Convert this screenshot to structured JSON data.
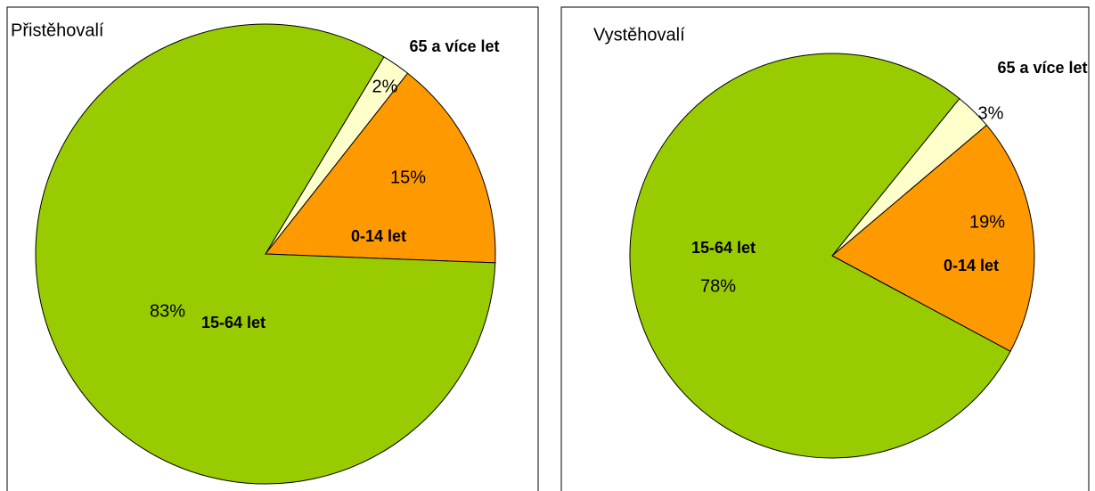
{
  "chart_data": [
    {
      "type": "pie",
      "title": "Přistěhovalí",
      "categories": [
        "0-14 let",
        "15-64 let",
        "65 a více let"
      ],
      "values": [
        15,
        83,
        2
      ],
      "value_labels": [
        "15%",
        "83%",
        "2%"
      ],
      "colors": [
        "#ff9900",
        "#99cc00",
        "#ffffcc"
      ]
    },
    {
      "type": "pie",
      "title": "Vystěhovalí",
      "categories": [
        "0-14 let",
        "15-64 let",
        "65 a více let"
      ],
      "values": [
        19,
        78,
        3
      ],
      "value_labels": [
        "19%",
        "78%",
        "3%"
      ],
      "colors": [
        "#ff9900",
        "#99cc00",
        "#ffffcc"
      ]
    }
  ]
}
